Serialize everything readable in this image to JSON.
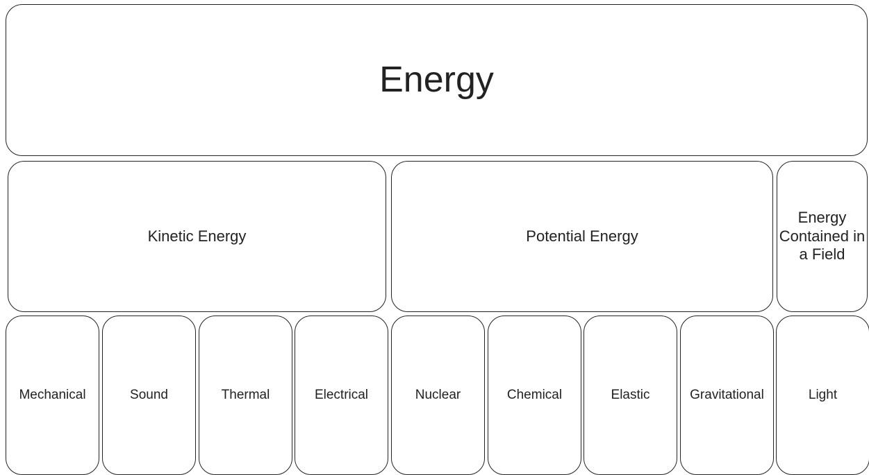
{
  "title": "Energy",
  "groups": [
    {
      "label": "Kinetic Energy",
      "types": [
        "Mechanical",
        "Sound",
        "Thermal",
        "Electrical"
      ]
    },
    {
      "label": "Potential Energy",
      "types": [
        "Nuclear",
        "Chemical",
        "Elastic",
        "Gravitational"
      ]
    },
    {
      "label": "Energy Contained in a Field",
      "types": [
        "Light"
      ]
    }
  ]
}
